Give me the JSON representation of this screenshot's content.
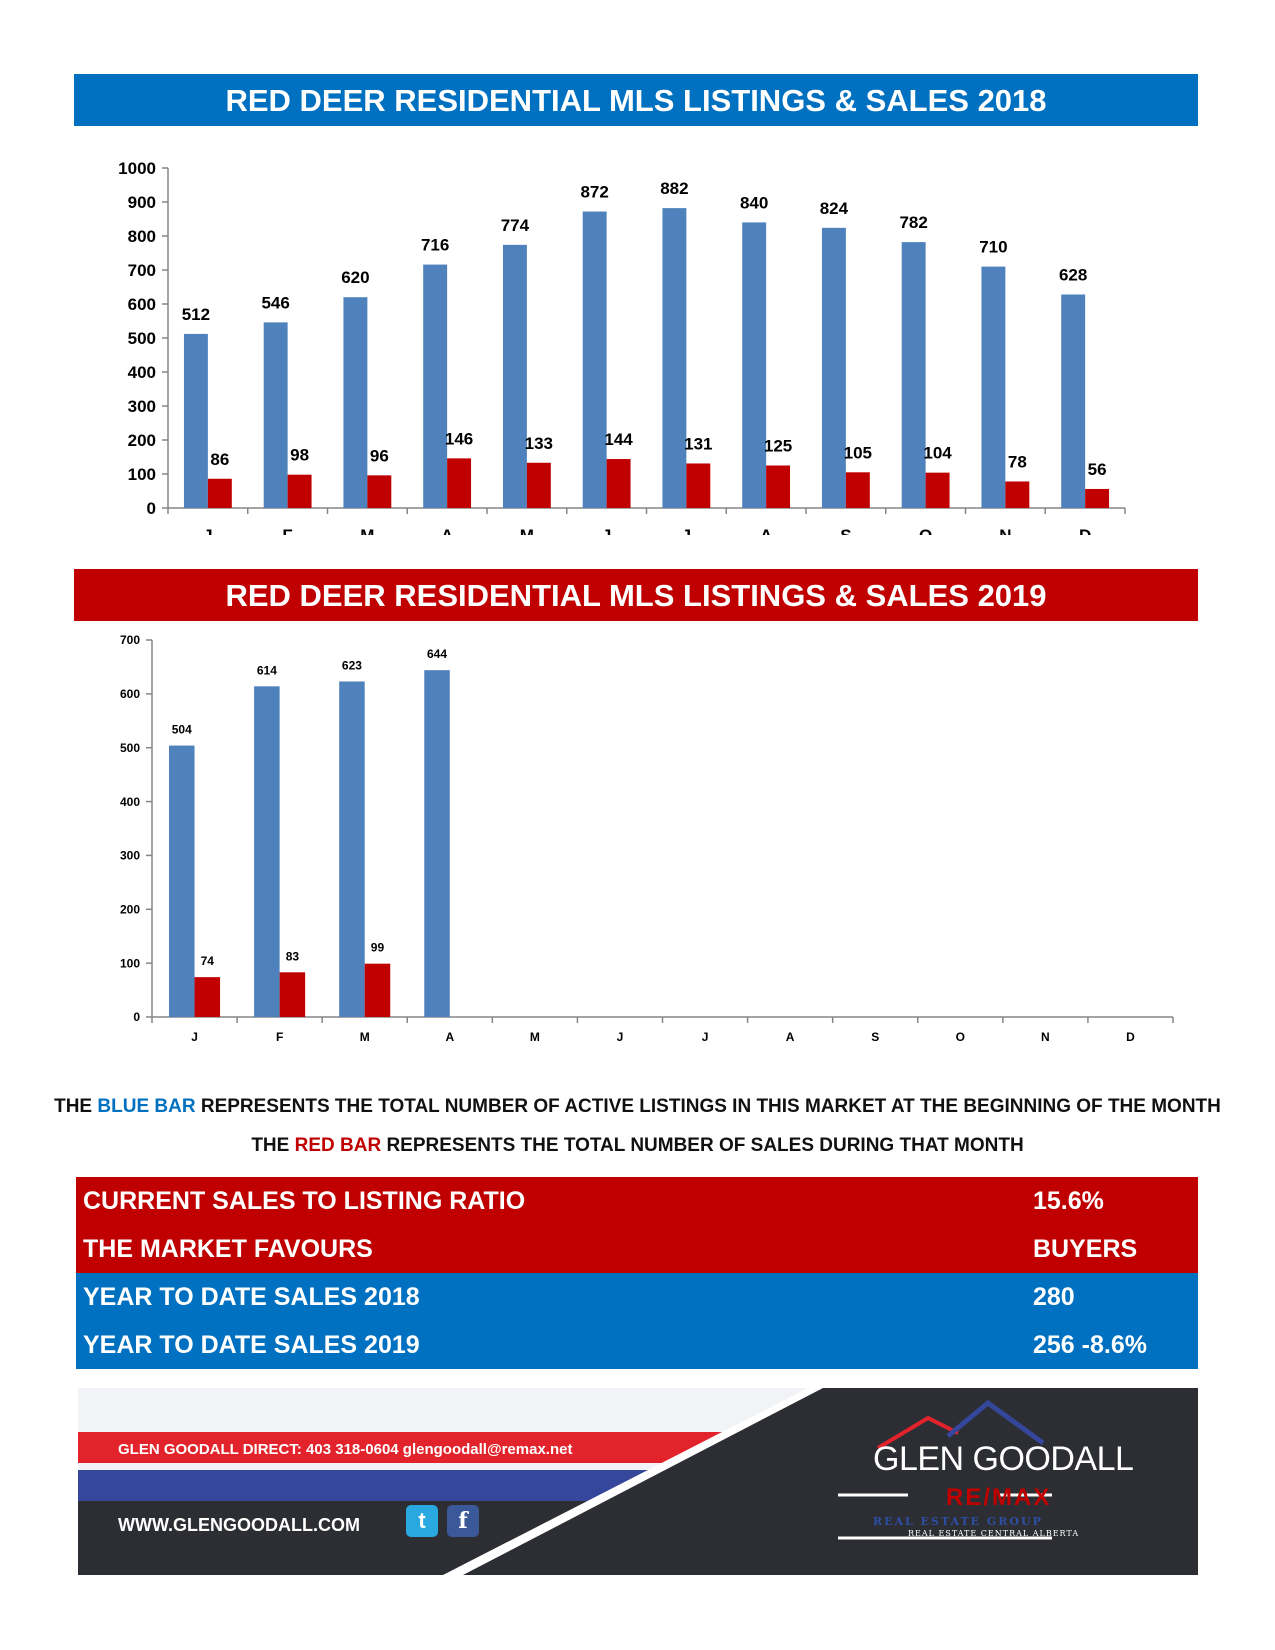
{
  "titles": {
    "chart_2018": "RED DEER RESIDENTIAL MLS LISTINGS & SALES 2018",
    "chart_2019": "RED DEER RESIDENTIAL MLS LISTINGS & SALES 2019"
  },
  "chart_data": [
    {
      "type": "bar",
      "title": "RED DEER RESIDENTIAL MLS LISTINGS & SALES 2018",
      "categories": [
        "J",
        "F",
        "M",
        "A",
        "M",
        "J",
        "J",
        "A",
        "S",
        "O",
        "N",
        "D"
      ],
      "series": [
        {
          "values": [
            512,
            546,
            620,
            716,
            774,
            872,
            882,
            840,
            824,
            782,
            710,
            628
          ],
          "color": "#4f81bd"
        },
        {
          "values": [
            86,
            98,
            96,
            146,
            133,
            144,
            131,
            125,
            105,
            104,
            78,
            56
          ],
          "color": "#c00000"
        }
      ],
      "ylim": [
        0,
        1000
      ],
      "yticks": [
        0,
        100,
        200,
        300,
        400,
        500,
        600,
        700,
        800,
        900,
        1000
      ],
      "grid": false
    },
    {
      "type": "bar",
      "title": "RED DEER RESIDENTIAL MLS LISTINGS & SALES 2019",
      "categories": [
        "J",
        "F",
        "M",
        "A",
        "M",
        "J",
        "J",
        "A",
        "S",
        "O",
        "N",
        "D"
      ],
      "series": [
        {
          "values": [
            504,
            614,
            623,
            644,
            null,
            null,
            null,
            null,
            null,
            null,
            null,
            null
          ],
          "color": "#4f81bd"
        },
        {
          "values": [
            74,
            83,
            99,
            null,
            null,
            null,
            null,
            null,
            null,
            null,
            null,
            null
          ],
          "color": "#c00000"
        }
      ],
      "ylim": [
        0,
        700
      ],
      "yticks": [
        0,
        100,
        200,
        300,
        400,
        500,
        600,
        700
      ],
      "grid": false
    }
  ],
  "legend": {
    "blue_prefix": "THE ",
    "blue_word": "BLUE BAR",
    "blue_suffix": " REPRESENTS THE TOTAL NUMBER OF ACTIVE LISTINGS IN THIS MARKET AT THE BEGINNING OF THE MONTH",
    "red_prefix": "THE ",
    "red_word": "RED BAR",
    "red_suffix": " REPRESENTS THE TOTAL NUMBER OF SALES DURING THAT MONTH"
  },
  "stats": [
    {
      "label": "CURRENT SALES TO LISTING RATIO",
      "value": "15.6%"
    },
    {
      "label": "THE MARKET FAVOURS",
      "value": "BUYERS"
    },
    {
      "label": "YEAR TO DATE SALES 2018",
      "value": "280"
    },
    {
      "label": "YEAR TO DATE SALES 2019",
      "value": "256  -8.6%"
    }
  ],
  "footer": {
    "contact": "GLEN GOODALL  DIRECT: 403 318-0604  glengoodall@remax.net",
    "website": "WWW.GLENGOODALL.COM",
    "twitter_glyph": "t",
    "facebook_glyph": "f",
    "brand_name": "GLEN GOODALL",
    "brand_remax": "RE/MAX",
    "brand_group": "REAL ESTATE GROUP",
    "brand_sub": "REAL ESTATE CENTRAL ALBERTA"
  },
  "colors": {
    "blue_bar": "#4f81bd",
    "red_bar": "#c00000",
    "banner_blue": "#0070c0",
    "banner_red": "#c00000"
  }
}
